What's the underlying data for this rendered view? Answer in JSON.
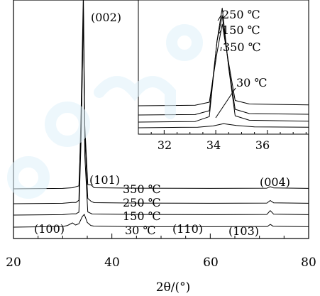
{
  "chart_data": {
    "type": "line",
    "title": "",
    "xlabel": "2θ/(°)",
    "ylabel": "",
    "xlim": [
      20,
      80
    ],
    "x_ticks": [
      20,
      40,
      60,
      80
    ],
    "grid": false,
    "legend": "none",
    "series": [
      {
        "name": "30 ℃",
        "points": [
          [
            20,
            0
          ],
          [
            30,
            0.3
          ],
          [
            31,
            0.8
          ],
          [
            32,
            2
          ],
          [
            32.6,
            1
          ],
          [
            33.3,
            1.6
          ],
          [
            34,
            5
          ],
          [
            34.4,
            6
          ],
          [
            35,
            2.2
          ],
          [
            35.7,
            0.8
          ],
          [
            36.3,
            0.5
          ],
          [
            45,
            0.2
          ],
          [
            55,
            0.2
          ],
          [
            60,
            0.2
          ],
          [
            70,
            0.3
          ],
          [
            71.6,
            0.3
          ],
          [
            72.2,
            1.3
          ],
          [
            72.8,
            0.4
          ],
          [
            80,
            0.2
          ]
        ]
      },
      {
        "name": "150 ℃",
        "points": [
          [
            20,
            0
          ],
          [
            30,
            0.2
          ],
          [
            31.9,
            0.6
          ],
          [
            32.7,
            0.6
          ],
          [
            33.3,
            1.4
          ],
          [
            33.8,
            40
          ],
          [
            34.2,
            98
          ],
          [
            34.5,
            28
          ],
          [
            35.1,
            1.5
          ],
          [
            36,
            0.5
          ],
          [
            45,
            0.3
          ],
          [
            60,
            0.2
          ],
          [
            71.5,
            0.3
          ],
          [
            72.2,
            2.1
          ],
          [
            72.9,
            0.4
          ],
          [
            80,
            0.2
          ]
        ]
      },
      {
        "name": "250 ℃",
        "points": [
          [
            20,
            0
          ],
          [
            30,
            0.2
          ],
          [
            31.9,
            0.6
          ],
          [
            32.7,
            0.6
          ],
          [
            33.3,
            1.6
          ],
          [
            33.8,
            50
          ],
          [
            34.2,
            99
          ],
          [
            34.5,
            32
          ],
          [
            35.1,
            2.5
          ],
          [
            35.8,
            1.1
          ],
          [
            36.4,
            0.5
          ],
          [
            45,
            0.3
          ],
          [
            60,
            0.2
          ],
          [
            71.5,
            0.3
          ],
          [
            72.2,
            1.5
          ],
          [
            72.9,
            0.4
          ],
          [
            80,
            0.2
          ]
        ]
      },
      {
        "name": "350 ℃",
        "points": [
          [
            20,
            0
          ],
          [
            30,
            0.2
          ],
          [
            32,
            0.5
          ],
          [
            33.3,
            1.4
          ],
          [
            33.8,
            32
          ],
          [
            34.2,
            82
          ],
          [
            34.5,
            30
          ],
          [
            35.1,
            2
          ],
          [
            35.8,
            1.8
          ],
          [
            36.4,
            0.5
          ],
          [
            45,
            0.3
          ],
          [
            60,
            0.2
          ],
          [
            71.5,
            0.3
          ],
          [
            72.2,
            1
          ],
          [
            72.9,
            0.4
          ],
          [
            80,
            0.2
          ]
        ]
      }
    ],
    "annotations": [
      "(002)",
      "(101)",
      "(004)",
      "(100)",
      "(110)",
      "(103)"
    ],
    "inset": {
      "xlim": [
        31,
        37.6
      ],
      "x_ticks": [
        32,
        34,
        36
      ],
      "labels": [
        "250 ℃",
        "150 ℃",
        "350 ℃",
        "30 ℃"
      ],
      "series": [
        {
          "name": "30 ℃",
          "points": [
            [
              31,
              0
            ],
            [
              33.3,
              0.4
            ],
            [
              33.9,
              1.3
            ],
            [
              34.3,
              2.9
            ],
            [
              34.8,
              1.6
            ],
            [
              35.5,
              0.6
            ],
            [
              37.6,
              0.4
            ]
          ]
        },
        {
          "name": "150 ℃",
          "points": [
            [
              31,
              0
            ],
            [
              33.2,
              0.3
            ],
            [
              33.75,
              3
            ],
            [
              34.05,
              45
            ],
            [
              34.25,
              63
            ],
            [
              34.5,
              30
            ],
            [
              34.75,
              3.5
            ],
            [
              35.3,
              1
            ],
            [
              37.6,
              0.5
            ]
          ]
        },
        {
          "name": "250 ℃",
          "points": [
            [
              31,
              0
            ],
            [
              33.2,
              0.3
            ],
            [
              33.75,
              3
            ],
            [
              34.05,
              52
            ],
            [
              34.25,
              70
            ],
            [
              34.5,
              34
            ],
            [
              34.75,
              4
            ],
            [
              35.3,
              1
            ],
            [
              37.6,
              0.5
            ]
          ]
        },
        {
          "name": "350 ℃",
          "points": [
            [
              31,
              0
            ],
            [
              33.2,
              0.3
            ],
            [
              33.75,
              2
            ],
            [
              34.05,
              30
            ],
            [
              34.25,
              46
            ],
            [
              34.5,
              24
            ],
            [
              34.75,
              3
            ],
            [
              35.3,
              1
            ],
            [
              37.6,
              0.5
            ]
          ]
        }
      ]
    }
  }
}
